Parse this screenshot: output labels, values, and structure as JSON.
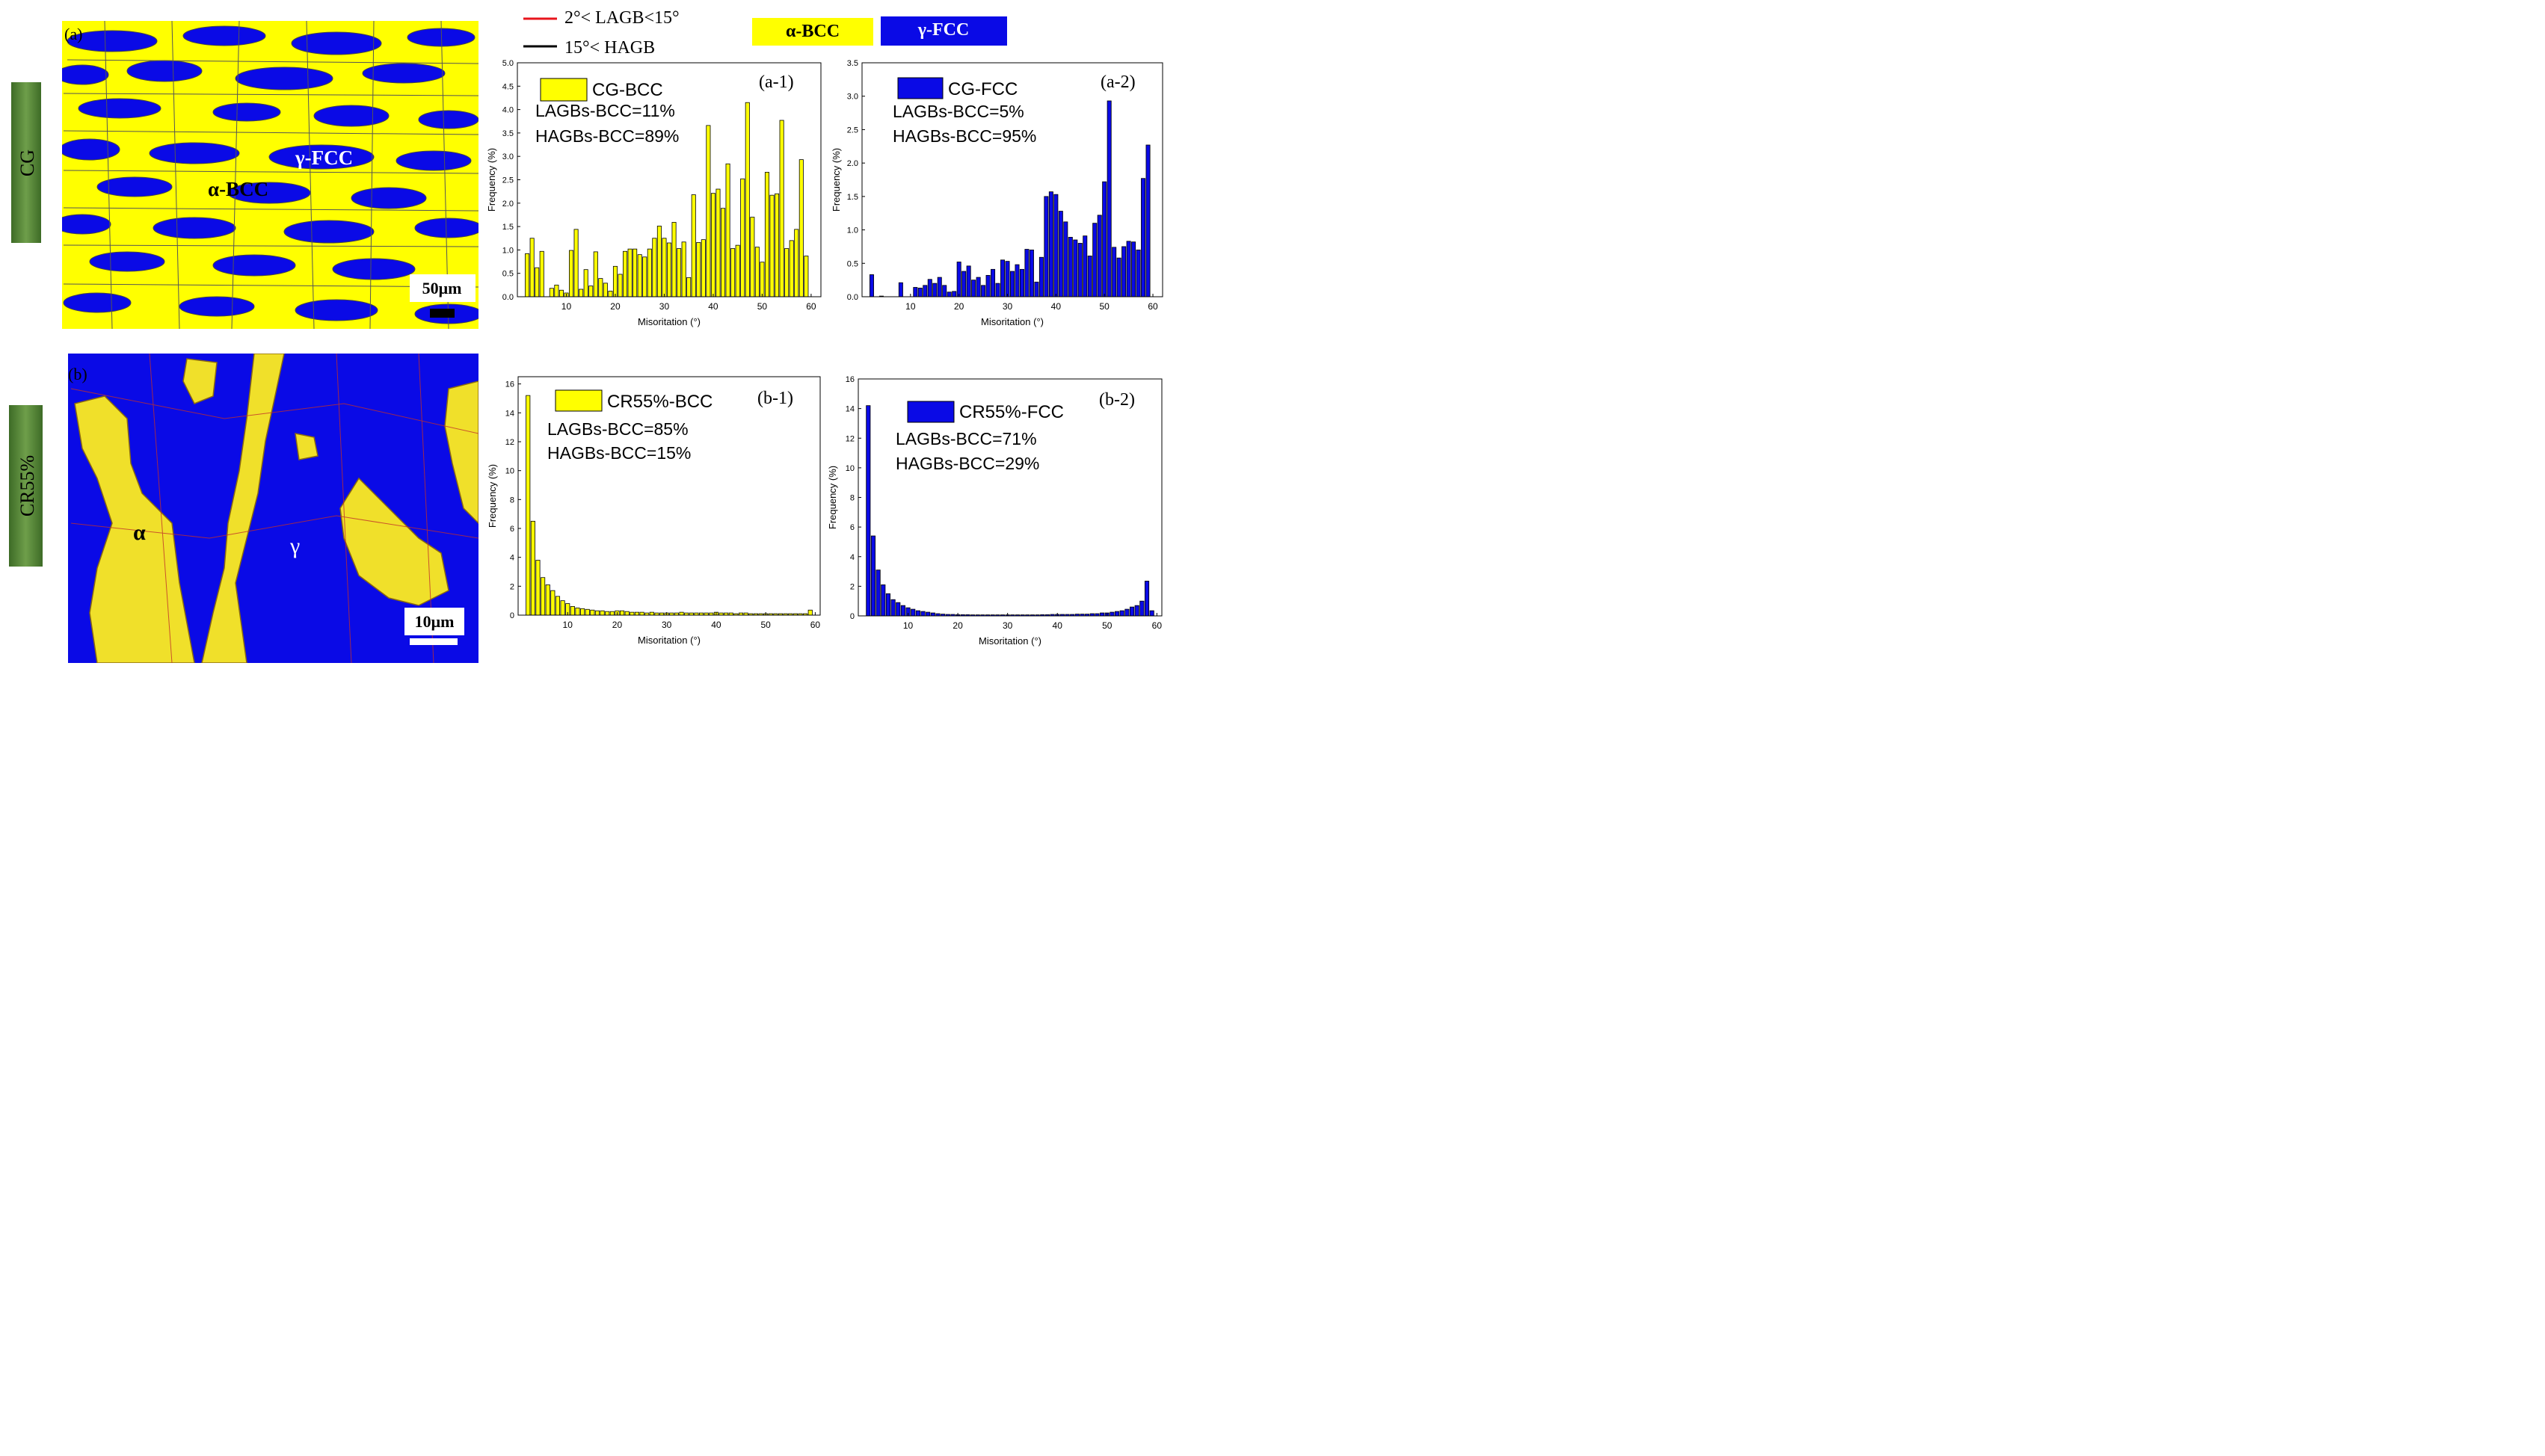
{
  "legend_boundaries": {
    "lagb": {
      "label": "2°< LAGB<15°",
      "color": "#e8141c"
    },
    "hagb": {
      "label": "15°< HAGB",
      "color": "#000000"
    }
  },
  "phase_legend": {
    "bcc": {
      "label": "α-BCC",
      "color": "#ffff00"
    },
    "fcc": {
      "label": "γ-FCC",
      "color": "#0a0ae6"
    }
  },
  "rows": [
    {
      "label": "CG",
      "color": "#4a7c2f"
    },
    {
      "label": "CR55%",
      "color": "#4a7c2f"
    }
  ],
  "maps": [
    {
      "panel": "(a)",
      "phase_labels": [
        "α-BCC",
        "γ-FCC"
      ],
      "scale_bar": "50μm"
    },
    {
      "panel": "(b)",
      "phase_labels": [
        "α",
        "γ"
      ],
      "scale_bar": "10μm"
    }
  ],
  "chart_data": [
    {
      "id": "a-1",
      "type": "bar",
      "panel_tag": "(a-1)",
      "title": "",
      "xlabel": "Misoritation (°)",
      "ylabel": "Frequency (%)",
      "xlim": [
        0,
        62
      ],
      "ylim": [
        0,
        5.0
      ],
      "xticks": [
        10,
        20,
        30,
        40,
        50,
        60
      ],
      "yticks": [
        0.0,
        0.5,
        1.0,
        1.5,
        2.0,
        2.5,
        3.0,
        3.5,
        4.0,
        4.5,
        5.0
      ],
      "ytick_decimals": 1,
      "bar_color": "#ffff00",
      "legend": "CG-BCC",
      "annotations": [
        "LAGBs-BCC=11%",
        "HAGBs-BCC=89%"
      ],
      "x": [
        2,
        3,
        4,
        5,
        6,
        7,
        8,
        9,
        10,
        11,
        12,
        13,
        14,
        15,
        16,
        17,
        18,
        19,
        20,
        21,
        22,
        23,
        24,
        25,
        26,
        27,
        28,
        29,
        30,
        31,
        32,
        33,
        34,
        35,
        36,
        37,
        38,
        39,
        40,
        41,
        42,
        43,
        44,
        45,
        46,
        47,
        48,
        49,
        50,
        51,
        52,
        53,
        54,
        55,
        56,
        57,
        58,
        59,
        60
      ],
      "values": [
        0.92,
        1.25,
        0.62,
        0.97,
        0.0,
        0.18,
        0.25,
        0.14,
        0.08,
        0.99,
        1.44,
        0.16,
        0.58,
        0.23,
        0.96,
        0.39,
        0.29,
        0.12,
        0.65,
        0.48,
        0.97,
        1.02,
        1.02,
        0.9,
        0.85,
        1.02,
        1.25,
        1.51,
        1.25,
        1.15,
        1.59,
        1.03,
        1.17,
        0.41,
        2.18,
        1.16,
        1.22,
        3.66,
        2.21,
        2.3,
        1.89,
        2.84,
        1.03,
        1.1,
        2.52,
        4.15,
        1.7,
        1.06,
        0.74,
        2.66,
        2.17,
        2.2,
        3.77,
        1.03,
        1.2,
        1.44,
        2.93,
        0.87,
        0.0
      ]
    },
    {
      "id": "a-2",
      "type": "bar",
      "panel_tag": "(a-2)",
      "title": "",
      "xlabel": "Misoritation (°)",
      "ylabel": "Frequency (%)",
      "xlim": [
        0,
        62
      ],
      "ylim": [
        0,
        3.5
      ],
      "xticks": [
        10,
        20,
        30,
        40,
        50,
        60
      ],
      "yticks": [
        0.0,
        0.5,
        1.0,
        1.5,
        2.0,
        2.5,
        3.0,
        3.5
      ],
      "ytick_decimals": 1,
      "bar_color": "#0a0ae6",
      "legend": "CG-FCC",
      "annotations": [
        "LAGBs-BCC=5%",
        "HAGBs-BCC=95%"
      ],
      "x": [
        2,
        3,
        4,
        5,
        6,
        7,
        8,
        9,
        10,
        11,
        12,
        13,
        14,
        15,
        16,
        17,
        18,
        19,
        20,
        21,
        22,
        23,
        24,
        25,
        26,
        27,
        28,
        29,
        30,
        31,
        32,
        33,
        34,
        35,
        36,
        37,
        38,
        39,
        40,
        41,
        42,
        43,
        44,
        45,
        46,
        47,
        48,
        49,
        50,
        51,
        52,
        53,
        54,
        55,
        56,
        57,
        58,
        59,
        60
      ],
      "values": [
        0.33,
        0.0,
        0.01,
        0.0,
        0.0,
        0.0,
        0.21,
        0.0,
        0.0,
        0.14,
        0.13,
        0.17,
        0.26,
        0.2,
        0.29,
        0.17,
        0.07,
        0.08,
        0.52,
        0.38,
        0.46,
        0.25,
        0.29,
        0.17,
        0.32,
        0.41,
        0.2,
        0.55,
        0.53,
        0.38,
        0.48,
        0.41,
        0.71,
        0.7,
        0.22,
        0.59,
        1.5,
        1.57,
        1.53,
        1.28,
        1.12,
        0.89,
        0.85,
        0.8,
        0.91,
        0.61,
        1.1,
        1.22,
        1.72,
        2.93,
        0.74,
        0.58,
        0.75,
        0.83,
        0.82,
        0.7,
        1.77,
        2.27,
        0.0
      ]
    },
    {
      "id": "b-1",
      "type": "bar",
      "panel_tag": "(b-1)",
      "title": "",
      "xlabel": "Misoritation (°)",
      "ylabel": "Frequency (%)",
      "xlim": [
        0,
        61
      ],
      "ylim": [
        0,
        16.5
      ],
      "xticks": [
        10,
        20,
        30,
        40,
        50,
        60
      ],
      "yticks": [
        0,
        2,
        4,
        6,
        8,
        10,
        12,
        14,
        16
      ],
      "ytick_decimals": 0,
      "bar_color": "#ffff00",
      "legend": "CR55%-BCC",
      "annotations": [
        "LAGBs-BCC=85%",
        "HAGBs-BCC=15%"
      ],
      "x": [
        2,
        3,
        4,
        5,
        6,
        7,
        8,
        9,
        10,
        11,
        12,
        13,
        14,
        15,
        16,
        17,
        18,
        19,
        20,
        21,
        22,
        23,
        24,
        25,
        26,
        27,
        28,
        29,
        30,
        31,
        32,
        33,
        34,
        35,
        36,
        37,
        38,
        39,
        40,
        41,
        42,
        43,
        44,
        45,
        46,
        47,
        48,
        49,
        50,
        51,
        52,
        53,
        54,
        55,
        56,
        57,
        58,
        59,
        60
      ],
      "values": [
        15.2,
        6.5,
        3.8,
        2.6,
        2.1,
        1.7,
        1.3,
        1.0,
        0.8,
        0.6,
        0.5,
        0.45,
        0.4,
        0.35,
        0.3,
        0.3,
        0.25,
        0.25,
        0.3,
        0.3,
        0.25,
        0.2,
        0.2,
        0.2,
        0.15,
        0.2,
        0.15,
        0.15,
        0.15,
        0.15,
        0.15,
        0.2,
        0.15,
        0.15,
        0.15,
        0.15,
        0.15,
        0.15,
        0.2,
        0.15,
        0.15,
        0.15,
        0.1,
        0.15,
        0.15,
        0.1,
        0.1,
        0.1,
        0.1,
        0.1,
        0.1,
        0.1,
        0.1,
        0.1,
        0.1,
        0.1,
        0.1,
        0.35,
        0.0
      ]
    },
    {
      "id": "b-2",
      "type": "bar",
      "panel_tag": "(b-2)",
      "title": "",
      "xlabel": "Misoritation (°)",
      "ylabel": "Frequency (%)",
      "xlim": [
        0,
        61
      ],
      "ylim": [
        0,
        16
      ],
      "xticks": [
        10,
        20,
        30,
        40,
        50,
        60
      ],
      "yticks": [
        0,
        2,
        4,
        6,
        8,
        10,
        12,
        14,
        16
      ],
      "ytick_decimals": 0,
      "bar_color": "#0a0ae6",
      "legend": "CR55%-FCC",
      "annotations": [
        "LAGBs-BCC=71%",
        "HAGBs-BCC=29%"
      ],
      "x": [
        2,
        3,
        4,
        5,
        6,
        7,
        8,
        9,
        10,
        11,
        12,
        13,
        14,
        15,
        16,
        17,
        18,
        19,
        20,
        21,
        22,
        23,
        24,
        25,
        26,
        27,
        28,
        29,
        30,
        31,
        32,
        33,
        34,
        35,
        36,
        37,
        38,
        39,
        40,
        41,
        42,
        43,
        44,
        45,
        46,
        47,
        48,
        49,
        50,
        51,
        52,
        53,
        54,
        55,
        56,
        57,
        58,
        59,
        60
      ],
      "values": [
        14.2,
        5.4,
        3.1,
        2.1,
        1.5,
        1.1,
        0.9,
        0.7,
        0.55,
        0.45,
        0.35,
        0.3,
        0.25,
        0.2,
        0.15,
        0.12,
        0.1,
        0.1,
        0.08,
        0.08,
        0.08,
        0.07,
        0.07,
        0.07,
        0.07,
        0.07,
        0.07,
        0.07,
        0.07,
        0.07,
        0.07,
        0.07,
        0.07,
        0.07,
        0.07,
        0.08,
        0.08,
        0.1,
        0.1,
        0.1,
        0.1,
        0.1,
        0.12,
        0.12,
        0.12,
        0.15,
        0.15,
        0.2,
        0.2,
        0.25,
        0.3,
        0.35,
        0.45,
        0.6,
        0.7,
        1.0,
        2.35,
        0.35,
        0.0
      ]
    }
  ]
}
